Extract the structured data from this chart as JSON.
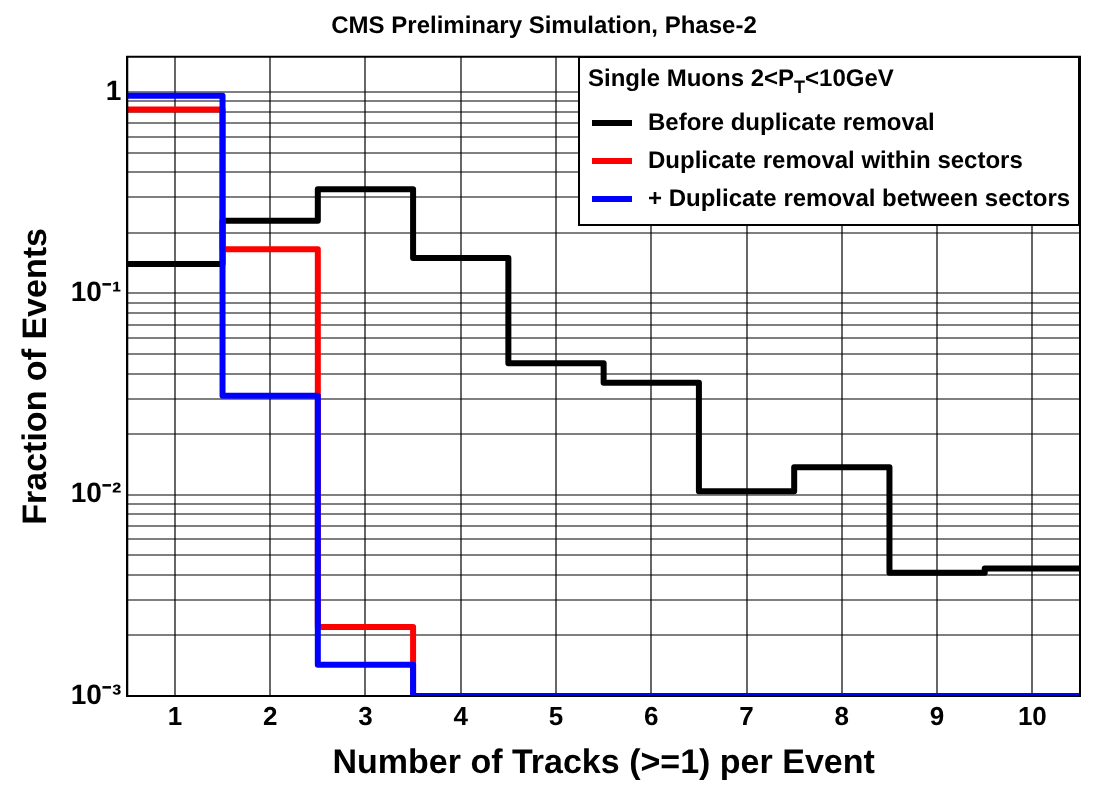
{
  "chart_data": {
    "type": "histogram",
    "title": "CMS Preliminary Simulation, Phase-2",
    "xlabel": "Number of Tracks (>=1) per Event",
    "ylabel": "Fraction of Events",
    "legend_title": "Single Muons 2<P$_{T}$<10GeV",
    "bins": [
      0.5,
      1.5,
      2.5,
      3.5,
      4.5,
      5.5,
      6.5,
      7.5,
      8.5,
      9.5,
      10.5
    ],
    "series": [
      {
        "name": "Before duplicate removal",
        "color": "#000000",
        "values": [
          0.14,
          0.23,
          0.33,
          0.15,
          0.045,
          0.036,
          0.0104,
          0.0137,
          0.0041,
          0.0043
        ]
      },
      {
        "name": "Duplicate removal within sectors",
        "color": "#ff0000",
        "values": [
          0.82,
          0.166,
          0.0022,
          0.001,
          0.001,
          0.001,
          0.001,
          0.001,
          0.001,
          0.001
        ]
      },
      {
        "name": "+ Duplicate removal between sectors",
        "color": "#0000ff",
        "values": [
          0.96,
          0.031,
          0.00143,
          0.001,
          0.001,
          0.001,
          0.001,
          0.001,
          0.001,
          0.001
        ]
      }
    ],
    "xlim": [
      0.5,
      10.5
    ],
    "xticks": [
      1,
      2,
      3,
      4,
      5,
      6,
      7,
      8,
      9,
      10
    ],
    "ylim": [
      0.001,
      1.5
    ],
    "yticks": [
      {
        "value": 0.001,
        "label": "10⁻³"
      },
      {
        "value": 0.002,
        "label": null
      },
      {
        "value": 0.003,
        "label": null
      },
      {
        "value": 0.004,
        "label": null
      },
      {
        "value": 0.005,
        "label": null
      },
      {
        "value": 0.006,
        "label": null
      },
      {
        "value": 0.007,
        "label": null
      },
      {
        "value": 0.008,
        "label": null
      },
      {
        "value": 0.009,
        "label": null
      },
      {
        "value": 0.01,
        "label": "10⁻²"
      },
      {
        "value": 0.02,
        "label": null
      },
      {
        "value": 0.03,
        "label": null
      },
      {
        "value": 0.04,
        "label": null
      },
      {
        "value": 0.05,
        "label": null
      },
      {
        "value": 0.06,
        "label": null
      },
      {
        "value": 0.07,
        "label": null
      },
      {
        "value": 0.08,
        "label": null
      },
      {
        "value": 0.09,
        "label": null
      },
      {
        "value": 0.1,
        "label": "10⁻¹"
      },
      {
        "value": 0.2,
        "label": null
      },
      {
        "value": 0.3,
        "label": null
      },
      {
        "value": 0.4,
        "label": null
      },
      {
        "value": 0.5,
        "label": null
      },
      {
        "value": 0.6,
        "label": null
      },
      {
        "value": 0.7,
        "label": null
      },
      {
        "value": 0.8,
        "label": null
      },
      {
        "value": 0.9,
        "label": null
      },
      {
        "value": 1,
        "label": "1"
      }
    ],
    "log": "y",
    "grid": true,
    "legend": "top right",
    "line_style": "solid",
    "marker": "none"
  }
}
